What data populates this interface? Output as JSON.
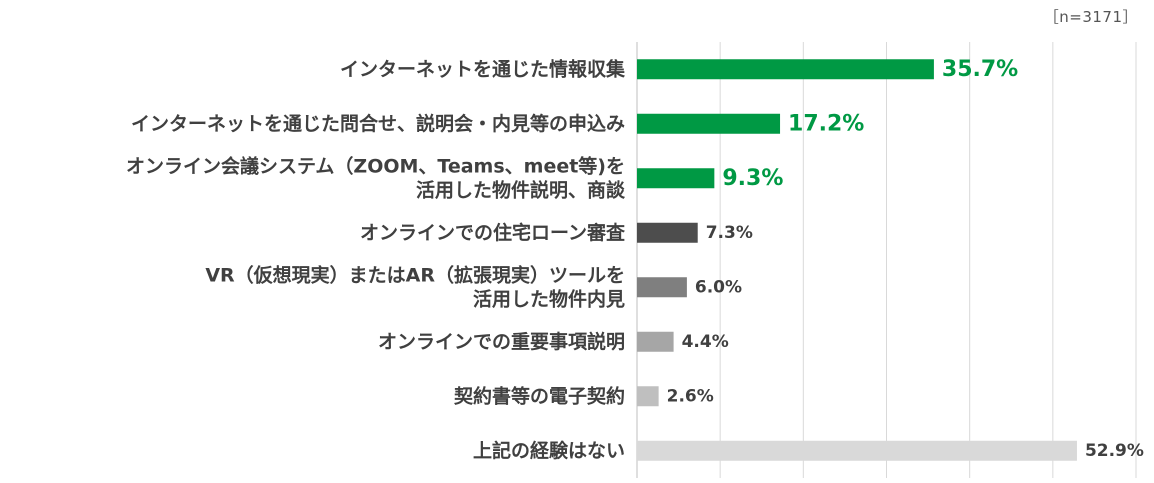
{
  "sample_note": "［n=3171］",
  "chart_data": {
    "type": "bar",
    "orientation": "horizontal",
    "title": "",
    "xlabel": "",
    "ylabel": "",
    "xlim": [
      0,
      60
    ],
    "grid": true,
    "categories": [
      [
        "インターネットを通じた情報収集"
      ],
      [
        "インターネットを通じた問合せ、説明会・内見等の申込み"
      ],
      [
        "オンライン会議システム（ZOOM、Teams、meet等)を",
        "活用した物件説明、商談"
      ],
      [
        "オンラインでの住宅ローン審査"
      ],
      [
        "VR（仮想現実）またはAR（拡張現実）ツールを",
        "活用した物件内見"
      ],
      [
        "オンラインでの重要事項説明"
      ],
      [
        "契約書等の電子契約"
      ],
      [
        "上記の経験はない"
      ]
    ],
    "values": [
      35.7,
      17.2,
      9.3,
      7.3,
      6.0,
      4.4,
      2.6,
      52.9
    ],
    "value_labels": [
      "35.7%",
      "17.2%",
      "9.3%",
      "7.3%",
      "6.0%",
      "4.4%",
      "2.6%",
      "52.9%"
    ],
    "bar_colors": [
      "#009944",
      "#009944",
      "#009944",
      "#4d4d4d",
      "#7f7f7f",
      "#a6a6a6",
      "#bfbfbf",
      "#d9d9d9"
    ],
    "label_colors": [
      "#009944",
      "#009944",
      "#009944",
      "#404040",
      "#404040",
      "#404040",
      "#404040",
      "#404040"
    ],
    "highlight_count": 3
  }
}
